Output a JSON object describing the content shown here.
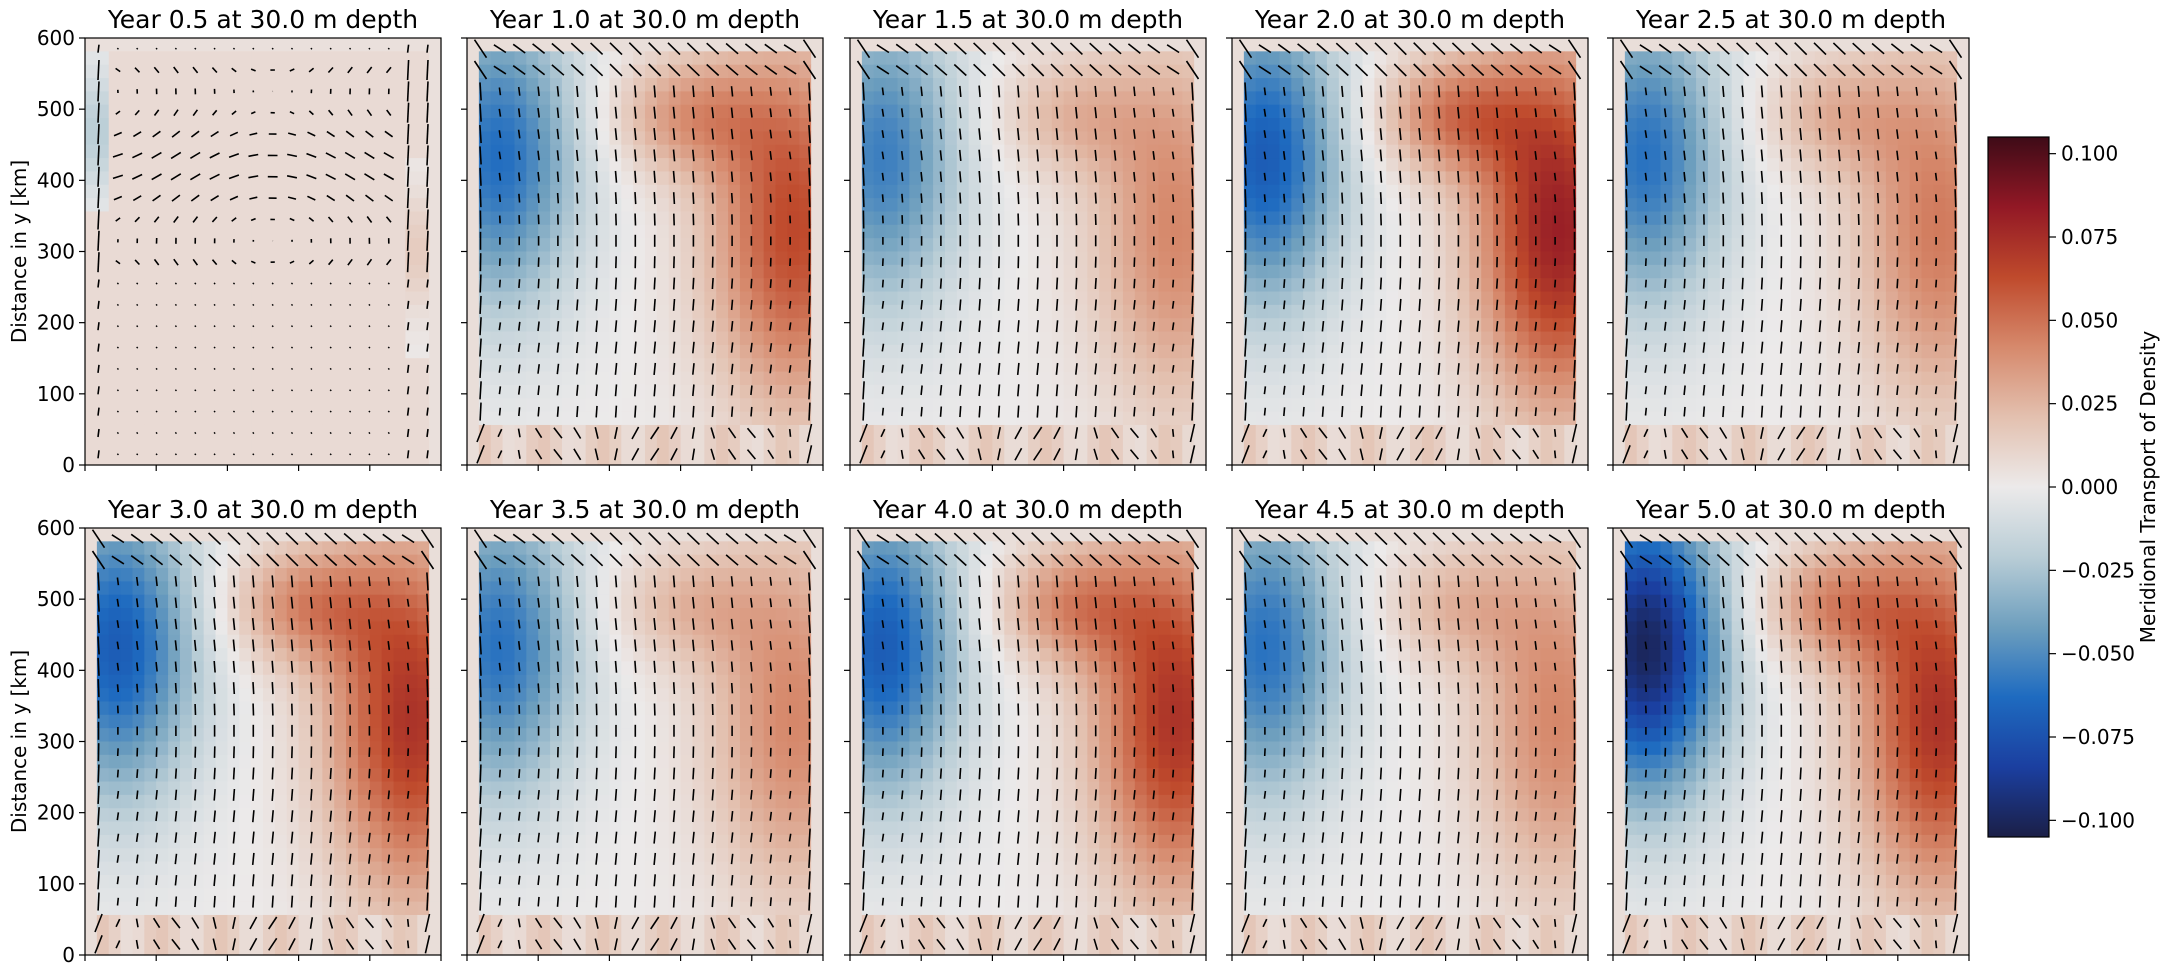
{
  "chart_data": {
    "type": "heatmap",
    "suptitle": "",
    "ylabel": "Distance in y [km]",
    "ylim": [
      0,
      600
    ],
    "yticks": [
      0,
      100,
      200,
      300,
      400,
      500,
      600
    ],
    "grid": false,
    "colorbar": {
      "label": "Meridional Transport of Density",
      "range": [
        -0.105,
        0.105
      ],
      "ticks": [
        0.1,
        0.075,
        0.05,
        0.025,
        0.0,
        -0.025,
        -0.05,
        -0.075,
        -0.1
      ],
      "tick_labels": [
        "0.100",
        "0.075",
        "0.050",
        "0.025",
        "0.000",
        "−0.025",
        "−0.050",
        "−0.075",
        "−0.100"
      ],
      "colormap": "balance",
      "stops": [
        "#1b1f47",
        "#1b3fa0",
        "#1e6bc0",
        "#6e9fbe",
        "#b9cdd6",
        "#eceaea",
        "#e3c0af",
        "#d6896c",
        "#bf4a2c",
        "#921825",
        "#3e0b17"
      ]
    },
    "vector_overlay": "quiver arrows of horizontal velocity",
    "panels": [
      {
        "title": "Year 0.5 at 30.0 m depth",
        "west_peak": -0.02,
        "east_peak": 0.015,
        "profile": "early"
      },
      {
        "title": "Year 1.0 at 30.0 m depth",
        "west_peak": -0.062,
        "east_peak": 0.075,
        "profile": "gyre"
      },
      {
        "title": "Year 1.5 at 30.0 m depth",
        "west_peak": -0.055,
        "east_peak": 0.05,
        "profile": "gyre"
      },
      {
        "title": "Year 2.0 at 30.0 m depth",
        "west_peak": -0.07,
        "east_peak": 0.095,
        "profile": "gyre"
      },
      {
        "title": "Year 2.5 at 30.0 m depth",
        "west_peak": -0.06,
        "east_peak": 0.055,
        "profile": "gyre"
      },
      {
        "title": "Year 3.0 at 30.0 m depth",
        "west_peak": -0.07,
        "east_peak": 0.085,
        "profile": "gyre"
      },
      {
        "title": "Year 3.5 at 30.0 m depth",
        "west_peak": -0.06,
        "east_peak": 0.05,
        "profile": "gyre"
      },
      {
        "title": "Year 4.0 at 30.0 m depth",
        "west_peak": -0.07,
        "east_peak": 0.085,
        "profile": "gyre"
      },
      {
        "title": "Year 4.5 at 30.0 m depth",
        "west_peak": -0.06,
        "east_peak": 0.05,
        "profile": "gyre"
      },
      {
        "title": "Year 5.0 at 30.0 m depth",
        "west_peak": -0.1,
        "east_peak": 0.085,
        "profile": "gyre"
      }
    ]
  }
}
